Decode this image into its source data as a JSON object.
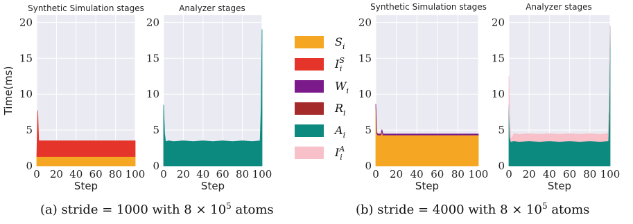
{
  "chart_data": [
    {
      "type": "area",
      "title": "Synthetic Simulation stages",
      "xlabel": "Step",
      "ylabel": "Time(ms)",
      "xlim": [
        0,
        100
      ],
      "ylim": [
        0,
        21
      ],
      "xticks": [
        "0",
        "20",
        "40",
        "60",
        "80",
        "100"
      ],
      "yticks": [
        "0",
        "5",
        "10",
        "15",
        "20"
      ],
      "grid": true,
      "stacked": true,
      "x": [
        0,
        1,
        2,
        5,
        10,
        20,
        30,
        40,
        50,
        60,
        70,
        80,
        90,
        100
      ],
      "series": [
        {
          "name": "S_i",
          "color": "#f5a623",
          "values": [
            1.3,
            1.3,
            1.3,
            1.3,
            1.3,
            1.3,
            1.3,
            1.3,
            1.3,
            1.3,
            1.3,
            1.3,
            1.3,
            1.3
          ]
        },
        {
          "name": "I_i^S",
          "color": "#e5352a",
          "values": [
            0,
            6.4,
            2.2,
            2.2,
            2.2,
            2.2,
            2.2,
            2.2,
            2.2,
            2.2,
            2.2,
            2.2,
            2.2,
            2.2
          ]
        }
      ]
    },
    {
      "type": "area",
      "title": "Analyzer stages",
      "xlabel": "Step",
      "xlim": [
        0,
        100
      ],
      "ylim": [
        0,
        21
      ],
      "xticks": [
        "0",
        "20",
        "40",
        "60",
        "80",
        "100"
      ],
      "yticks": [
        "0",
        "5",
        "10",
        "15",
        "20"
      ],
      "grid": true,
      "stacked": true,
      "x": [
        0,
        1,
        2,
        5,
        10,
        20,
        30,
        40,
        50,
        60,
        70,
        80,
        90,
        98,
        99,
        100
      ],
      "series": [
        {
          "name": "A_i",
          "color": "#0d8a80",
          "values": [
            8.5,
            4.5,
            3.4,
            3.5,
            3.4,
            3.5,
            3.4,
            3.5,
            3.4,
            3.5,
            3.4,
            3.5,
            3.4,
            3.5,
            8.0,
            19.0
          ]
        }
      ]
    },
    {
      "type": "area",
      "title": "Synthetic Simulation stages",
      "xlabel": "Step",
      "xlim": [
        0,
        100
      ],
      "ylim": [
        0,
        21
      ],
      "xticks": [
        "0",
        "20",
        "40",
        "60",
        "80",
        "100"
      ],
      "yticks": [
        "0",
        "5",
        "10",
        "15",
        "20"
      ],
      "grid": true,
      "stacked": true,
      "x": [
        0,
        1,
        2,
        5,
        6,
        7,
        10,
        20,
        30,
        40,
        50,
        60,
        70,
        80,
        90,
        100
      ],
      "series": [
        {
          "name": "S_i",
          "color": "#f5a623",
          "values": [
            8.5,
            4.5,
            4.3,
            4.3,
            4.9,
            4.3,
            4.3,
            4.3,
            4.3,
            4.3,
            4.3,
            4.3,
            4.3,
            4.3,
            4.3,
            4.3
          ]
        },
        {
          "name": "W_i",
          "color": "#7b1a8a",
          "values": [
            0.1,
            0.15,
            0.15,
            0.15,
            0.15,
            0.15,
            0.15,
            0.15,
            0.15,
            0.15,
            0.15,
            0.15,
            0.15,
            0.15,
            0.15,
            0.15
          ]
        }
      ]
    },
    {
      "type": "area",
      "title": "Analyzer stages",
      "xlabel": "Step",
      "xlim": [
        0,
        100
      ],
      "ylim": [
        0,
        21
      ],
      "xticks": [
        "0",
        "20",
        "40",
        "60",
        "80",
        "100"
      ],
      "yticks": [
        "0",
        "5",
        "10",
        "15",
        "20"
      ],
      "grid": true,
      "stacked": true,
      "x": [
        0,
        1,
        2,
        5,
        10,
        20,
        30,
        40,
        50,
        60,
        70,
        80,
        90,
        98,
        99,
        100
      ],
      "series": [
        {
          "name": "A_i",
          "color": "#0d8a80",
          "values": [
            8.5,
            4.0,
            3.4,
            3.5,
            3.4,
            3.5,
            3.4,
            3.5,
            3.4,
            3.5,
            3.4,
            3.5,
            3.4,
            3.5,
            8.0,
            19.5
          ]
        },
        {
          "name": "I_i^A",
          "color": "#f8c0c8",
          "values": [
            4.0,
            2.0,
            0.3,
            1.0,
            1.0,
            1.0,
            1.0,
            1.0,
            1.0,
            1.0,
            1.0,
            1.0,
            1.0,
            1.0,
            0.2,
            0.0
          ]
        }
      ]
    }
  ],
  "legend": [
    {
      "label": "S",
      "sub": "i",
      "sup": "",
      "color": "#f5a623"
    },
    {
      "label": "I",
      "sub": "i",
      "sup": "S",
      "color": "#e5352a"
    },
    {
      "label": "W",
      "sub": "i",
      "sup": "",
      "color": "#7b1a8a"
    },
    {
      "label": "R",
      "sub": "i",
      "sup": "",
      "color": "#a52a2a"
    },
    {
      "label": "A",
      "sub": "i",
      "sup": "",
      "color": "#0d8a80"
    },
    {
      "label": "I",
      "sub": "i",
      "sup": "A",
      "color": "#f8c0c8"
    }
  ],
  "captions": {
    "a_prefix": "(a) stride = 1000 with 8 × 10",
    "a_exp": "5",
    "a_suffix": " atoms",
    "b_prefix": "(b) stride = 4000 with 8 × 10",
    "b_exp": "5",
    "b_suffix": " atoms"
  },
  "colors": {
    "panel_bg": "#eaeaf2",
    "grid": "#ffffff"
  }
}
